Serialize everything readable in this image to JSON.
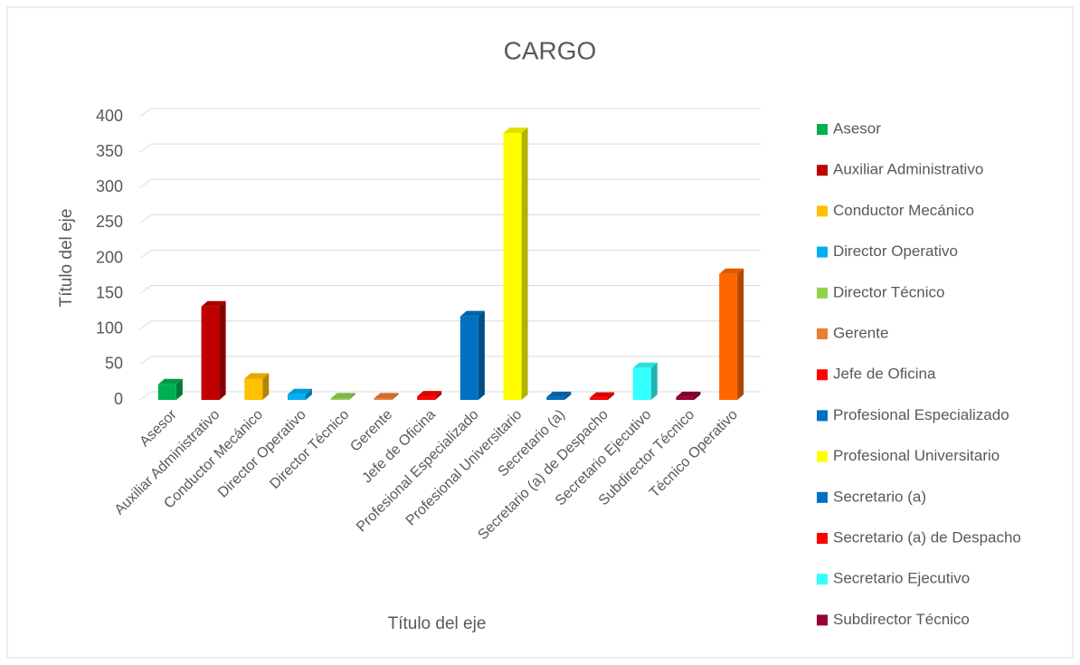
{
  "chart_data": {
    "type": "bar3d",
    "title": "CARGO",
    "x_label": "Título del eje",
    "y_label": "Título del eje",
    "categories": [
      "Asesor",
      "Auxiliar Administrativo",
      "Conductor Mecánico",
      "Director Operativo",
      "Director Técnico",
      "Gerente",
      "Jefe de Oficina",
      "Profesional Especializado",
      "Profesional Universitario",
      "Secretario (a)",
      "Secretario (a) de Despacho",
      "Secretario Ejecutivo",
      "Subdirector Técnico",
      "Técnico Operativo"
    ],
    "values": [
      22,
      132,
      30,
      8,
      2,
      2,
      5,
      118,
      377,
      4,
      3,
      45,
      4,
      178
    ],
    "colors": [
      "#00b050",
      "#c00000",
      "#ffc000",
      "#00b0f0",
      "#92d050",
      "#ed7d31",
      "#ff0000",
      "#0070c0",
      "#ffff00",
      "#0070c0",
      "#ff0000",
      "#33ffff",
      "#990033",
      "#ff6600"
    ],
    "ylim": [
      0,
      400
    ],
    "yticks": [
      0,
      50,
      100,
      150,
      200,
      250,
      300,
      350,
      400
    ],
    "grid": true,
    "legend": "right"
  }
}
